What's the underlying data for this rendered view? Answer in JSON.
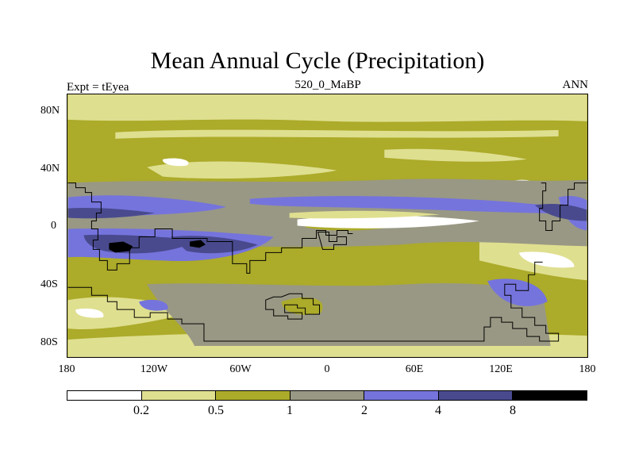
{
  "title": "Mean Annual Cycle (Precipitation)",
  "left_label": "Expt = tEyea",
  "center_label": "520_0_MaBP",
  "right_label": "ANN",
  "y_ticks": [
    "80N",
    "40N",
    "0",
    "40S",
    "80S"
  ],
  "x_ticks": [
    "180",
    "120W",
    "60W",
    "0",
    "60E",
    "120E",
    "180"
  ],
  "colorbar": {
    "labels": [
      "0.2",
      "0.5",
      "1",
      "2",
      "4",
      "8"
    ],
    "colors": [
      "#ffffff",
      "#dfdf90",
      "#acab2a",
      "#999884",
      "#7574dd",
      "#494a8e",
      "#000000"
    ]
  },
  "map_data": {
    "type": "filled-contour",
    "variable": "Precipitation",
    "lon_range": [
      -180,
      180
    ],
    "lat_range": [
      -90,
      90
    ],
    "levels": [
      0.2,
      0.5,
      1,
      2,
      4,
      8
    ]
  }
}
